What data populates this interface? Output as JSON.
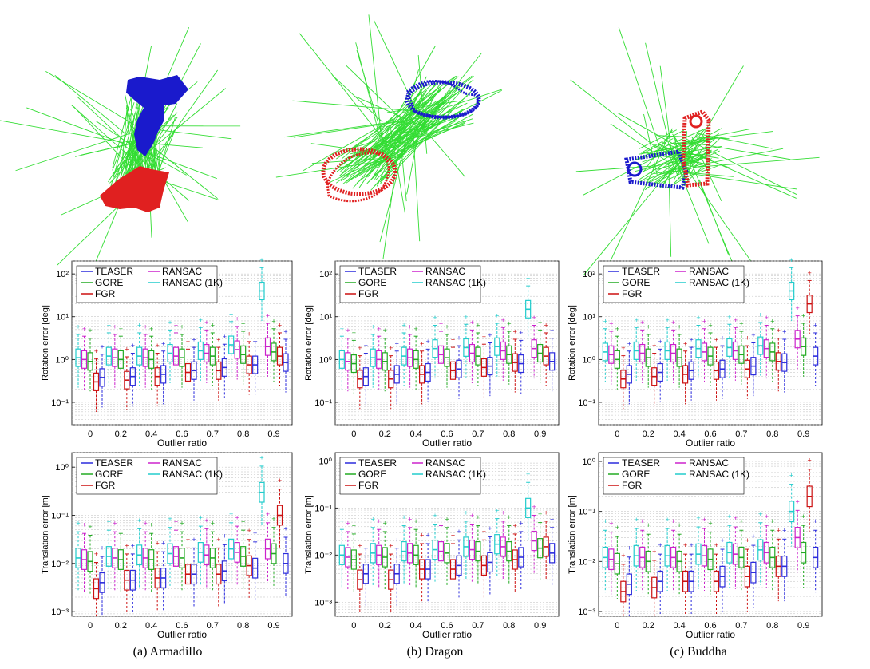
{
  "captions": [
    "(a) Armadillo",
    "(b) Dragon",
    "(c) Buddha"
  ],
  "colors": {
    "TEASER": "#2b2bdc",
    "GORE": "#22aa22",
    "FGR": "#cc1111",
    "RANSAC": "#cc22cc",
    "RANSAC (1K)": "#22cccc",
    "model_source": "#1a1acc",
    "model_target": "#e02020",
    "correspondence": "#33dd33"
  },
  "chart_data": [
    {
      "type": "boxplot",
      "dataset": "Armadillo",
      "metric": "rotation",
      "ylabel": "Rotation error [deg]",
      "xlabel": "Outlier ratio",
      "yscale": "log",
      "ylim": [
        0.03,
        200
      ],
      "yticks": [
        0.1,
        1,
        10,
        100
      ],
      "yticklabels": [
        "10⁻¹",
        "10⁰",
        "10¹",
        "10²"
      ],
      "categories": [
        "0",
        "0.2",
        "0.4",
        "0.6",
        "0.7",
        "0.8",
        "0.9"
      ],
      "legend": [
        "TEASER",
        "GORE",
        "FGR",
        "RANSAC",
        "RANSAC (1K)"
      ],
      "series": [
        {
          "name": "RANSAC (1K)",
          "median": [
            1.1,
            1.2,
            1.2,
            1.4,
            1.6,
            2.2,
            40
          ]
        },
        {
          "name": "RANSAC",
          "median": [
            1.0,
            1.1,
            1.1,
            1.2,
            1.4,
            1.7,
            2.0
          ]
        },
        {
          "name": "GORE",
          "median": [
            0.9,
            1.0,
            1.0,
            1.1,
            1.2,
            1.3,
            1.5
          ]
        },
        {
          "name": "FGR",
          "median": [
            0.3,
            0.33,
            0.4,
            0.5,
            0.55,
            0.75,
            1.2
          ]
        },
        {
          "name": "TEASER",
          "median": [
            0.38,
            0.4,
            0.45,
            0.55,
            0.65,
            0.75,
            0.85
          ]
        }
      ]
    },
    {
      "type": "boxplot",
      "dataset": "Dragon",
      "metric": "rotation",
      "ylabel": "Rotation error [deg]",
      "xlabel": "Outlier ratio",
      "yscale": "log",
      "ylim": [
        0.03,
        200
      ],
      "yticks": [
        0.1,
        1,
        10,
        100
      ],
      "yticklabels": [
        "10⁻¹",
        "10⁰",
        "10¹",
        "10²"
      ],
      "categories": [
        "0",
        "0.2",
        "0.4",
        "0.6",
        "0.7",
        "0.8",
        "0.9"
      ],
      "legend": [
        "TEASER",
        "GORE",
        "FGR",
        "RANSAC",
        "RANSAC (1K)"
      ],
      "series": [
        {
          "name": "RANSAC (1K)",
          "median": [
            1.0,
            1.1,
            1.2,
            1.8,
            1.9,
            2.0,
            15
          ]
        },
        {
          "name": "RANSAC",
          "median": [
            0.9,
            1.0,
            1.1,
            1.3,
            1.4,
            1.6,
            1.8
          ]
        },
        {
          "name": "GORE",
          "median": [
            0.8,
            0.9,
            1.0,
            1.1,
            1.2,
            1.3,
            1.4
          ]
        },
        {
          "name": "FGR",
          "median": [
            0.35,
            0.35,
            0.45,
            0.55,
            0.65,
            0.85,
            1.2
          ]
        },
        {
          "name": "TEASER",
          "median": [
            0.4,
            0.45,
            0.5,
            0.6,
            0.7,
            0.8,
            0.9
          ]
        }
      ]
    },
    {
      "type": "boxplot",
      "dataset": "Buddha",
      "metric": "rotation",
      "ylabel": "Rotation error [deg]",
      "xlabel": "Outlier ratio",
      "yscale": "log",
      "ylim": [
        0.03,
        200
      ],
      "yticks": [
        0.1,
        1,
        10,
        100
      ],
      "yticklabels": [
        "10⁻¹",
        "10⁰",
        "10¹",
        "10²"
      ],
      "categories": [
        "0",
        "0.2",
        "0.4",
        "0.6",
        "0.7",
        "0.8",
        "0.9"
      ],
      "legend": [
        "TEASER",
        "GORE",
        "FGR",
        "RANSAC",
        "RANSAC (1K)"
      ],
      "series": [
        {
          "name": "RANSAC (1K)",
          "median": [
            1.5,
            1.6,
            1.6,
            1.8,
            1.9,
            2.1,
            40
          ]
        },
        {
          "name": "RANSAC",
          "median": [
            1.3,
            1.4,
            1.4,
            1.5,
            1.6,
            1.8,
            3.0
          ]
        },
        {
          "name": "GORE",
          "median": [
            1.0,
            1.1,
            1.1,
            1.2,
            1.3,
            1.5,
            2.0
          ]
        },
        {
          "name": "FGR",
          "median": [
            0.35,
            0.4,
            0.45,
            0.55,
            0.6,
            0.9,
            20
          ]
        },
        {
          "name": "TEASER",
          "median": [
            0.45,
            0.5,
            0.55,
            0.6,
            0.7,
            0.85,
            1.2
          ]
        }
      ]
    },
    {
      "type": "boxplot",
      "dataset": "Armadillo",
      "metric": "translation",
      "ylabel": "Translation error [m]",
      "xlabel": "Outlier ratio",
      "yscale": "log",
      "ylim": [
        0.0008,
        2
      ],
      "yticks": [
        0.001,
        0.01,
        0.1,
        1
      ],
      "yticklabels": [
        "10⁻³",
        "10⁻²",
        "10⁻¹",
        "10⁰"
      ],
      "categories": [
        "0",
        "0.2",
        "0.4",
        "0.6",
        "0.7",
        "0.8",
        "0.9"
      ],
      "legend": [
        "TEASER",
        "GORE",
        "FGR",
        "RANSAC",
        "RANSAC (1K)"
      ],
      "series": [
        {
          "name": "RANSAC (1K)",
          "median": [
            0.013,
            0.014,
            0.015,
            0.016,
            0.017,
            0.02,
            0.3
          ]
        },
        {
          "name": "RANSAC",
          "median": [
            0.012,
            0.013,
            0.013,
            0.014,
            0.015,
            0.017,
            0.02
          ]
        },
        {
          "name": "GORE",
          "median": [
            0.011,
            0.012,
            0.012,
            0.013,
            0.013,
            0.014,
            0.016
          ]
        },
        {
          "name": "FGR",
          "median": [
            0.003,
            0.0045,
            0.005,
            0.006,
            0.006,
            0.009,
            0.1
          ]
        },
        {
          "name": "TEASER",
          "median": [
            0.004,
            0.0045,
            0.005,
            0.006,
            0.007,
            0.008,
            0.01
          ]
        }
      ]
    },
    {
      "type": "boxplot",
      "dataset": "Dragon",
      "metric": "translation",
      "ylabel": "Translation error [m]",
      "xlabel": "Outlier ratio",
      "yscale": "log",
      "ylim": [
        0.0005,
        1.5
      ],
      "yticks": [
        0.001,
        0.01,
        0.1,
        1
      ],
      "yticklabels": [
        "10⁻³",
        "10⁻²",
        "10⁻¹",
        "10⁰"
      ],
      "categories": [
        "0",
        "0.2",
        "0.4",
        "0.6",
        "0.7",
        "0.8",
        "0.9"
      ],
      "legend": [
        "TEASER",
        "GORE",
        "FGR",
        "RANSAC",
        "RANSAC (1K)"
      ],
      "series": [
        {
          "name": "RANSAC (1K)",
          "median": [
            0.01,
            0.011,
            0.012,
            0.013,
            0.015,
            0.017,
            0.1
          ]
        },
        {
          "name": "RANSAC",
          "median": [
            0.009,
            0.01,
            0.011,
            0.012,
            0.013,
            0.015,
            0.02
          ]
        },
        {
          "name": "GORE",
          "median": [
            0.008,
            0.009,
            0.01,
            0.011,
            0.012,
            0.012,
            0.014
          ]
        },
        {
          "name": "FGR",
          "median": [
            0.003,
            0.003,
            0.005,
            0.005,
            0.006,
            0.008,
            0.015
          ]
        },
        {
          "name": "TEASER",
          "median": [
            0.004,
            0.004,
            0.005,
            0.006,
            0.007,
            0.009,
            0.011
          ]
        }
      ]
    },
    {
      "type": "boxplot",
      "dataset": "Buddha",
      "metric": "translation",
      "ylabel": "Translation error [m]",
      "xlabel": "Outlier ratio",
      "yscale": "log",
      "ylim": [
        0.0008,
        1.5
      ],
      "yticks": [
        0.001,
        0.01,
        0.1,
        1
      ],
      "yticklabels": [
        "10⁻³",
        "10⁻²",
        "10⁻¹",
        "10⁰"
      ],
      "categories": [
        "0",
        "0.2",
        "0.4",
        "0.6",
        "0.7",
        "0.8",
        "0.9"
      ],
      "legend": [
        "TEASER",
        "GORE",
        "FGR",
        "RANSAC",
        "RANSAC (1K)"
      ],
      "series": [
        {
          "name": "RANSAC (1K)",
          "median": [
            0.012,
            0.013,
            0.013,
            0.014,
            0.015,
            0.017,
            0.1
          ]
        },
        {
          "name": "RANSAC",
          "median": [
            0.011,
            0.012,
            0.012,
            0.013,
            0.014,
            0.015,
            0.03
          ]
        },
        {
          "name": "GORE",
          "median": [
            0.009,
            0.01,
            0.01,
            0.011,
            0.012,
            0.012,
            0.015
          ]
        },
        {
          "name": "FGR",
          "median": [
            0.0025,
            0.003,
            0.004,
            0.004,
            0.005,
            0.008,
            0.2
          ]
        },
        {
          "name": "TEASER",
          "median": [
            0.0035,
            0.004,
            0.004,
            0.005,
            0.006,
            0.008,
            0.012
          ]
        }
      ]
    }
  ]
}
